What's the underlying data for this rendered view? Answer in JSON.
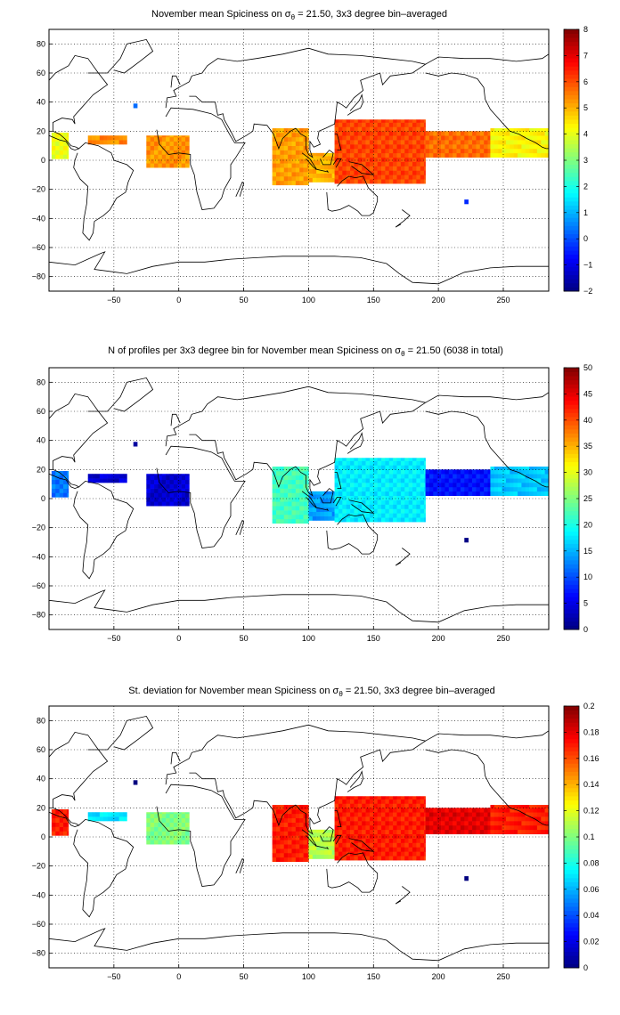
{
  "figure": {
    "background": "#ffffff"
  },
  "chart_data": [
    {
      "type": "heatmap",
      "title": "November mean Spiciness on σθ = 21.50, 3x3 degree bin–averaged",
      "title_main": "November mean Spiciness on σ",
      "title_sub": "θ",
      "title_rest": " = 21.50, 3x3 degree bin–averaged",
      "xlim": [
        -100,
        285
      ],
      "ylim": [
        -90,
        90
      ],
      "xticks": [
        -50,
        0,
        50,
        100,
        150,
        200,
        250
      ],
      "yticks": [
        -80,
        -60,
        -40,
        -20,
        0,
        20,
        40,
        60,
        80
      ],
      "grid": true,
      "colorbar": {
        "min": -2,
        "max": 8,
        "ticks": [
          -2,
          -1,
          0,
          1,
          2,
          3,
          4,
          5,
          6,
          7,
          8
        ]
      },
      "cell_size_deg": 3,
      "cells": [
        {
          "region": "Caribbean / eastern tropical Pacific",
          "lon": [
            -98,
            -85
          ],
          "lat": [
            1,
            19
          ],
          "value": 4.1
        },
        {
          "region": "tropical Atlantic band",
          "lon": [
            -70,
            -40
          ],
          "lat": [
            11,
            17
          ],
          "value": 5.4
        },
        {
          "region": "tropical eastern Atlantic",
          "lon": [
            -25,
            8
          ],
          "lat": [
            -5,
            17
          ],
          "value": 5.3
        },
        {
          "region": "isolated North Atlantic bin",
          "lon": [
            -35,
            -32
          ],
          "lat": [
            36,
            39
          ],
          "value": 0.4
        },
        {
          "region": "Bay of Bengal / eastern Indian Ocean",
          "lon": [
            72,
            100
          ],
          "lat": [
            -17,
            22
          ],
          "value": 5.2
        },
        {
          "region": "Indonesian seas",
          "lon": [
            100,
            120
          ],
          "lat": [
            -15,
            5
          ],
          "value": 5.0
        },
        {
          "region": "western Pacific warm pool",
          "lon": [
            120,
            190
          ],
          "lat": [
            -16,
            28
          ],
          "value": 6.1
        },
        {
          "region": "central tropical Pacific",
          "lon": [
            190,
            240
          ],
          "lat": [
            2,
            20
          ],
          "value": 5.7
        },
        {
          "region": "eastern tropical Pacific",
          "lon": [
            240,
            285
          ],
          "lat": [
            2,
            22
          ],
          "value": 4.3
        },
        {
          "region": "isolated South Pacific bin",
          "lon": [
            220,
            223
          ],
          "lat": [
            -30,
            -27
          ],
          "value": 0.0
        }
      ]
    },
    {
      "type": "heatmap",
      "title": "N of profiles per 3x3 degree bin for November mean Spiciness on σθ = 21.50 (6038 in total)",
      "title_main": "N of profiles per 3x3 degree bin for November mean Spiciness on σ",
      "title_sub": "θ",
      "title_rest": " = 21.50 (6038 in total)",
      "xlim": [
        -100,
        285
      ],
      "ylim": [
        -90,
        90
      ],
      "xticks": [
        -50,
        0,
        50,
        100,
        150,
        200,
        250
      ],
      "yticks": [
        -80,
        -60,
        -40,
        -20,
        0,
        20,
        40,
        60,
        80
      ],
      "grid": true,
      "colorbar": {
        "min": 0,
        "max": 50,
        "ticks": [
          0,
          5,
          10,
          15,
          20,
          25,
          30,
          35,
          40,
          45,
          50
        ]
      },
      "cell_size_deg": 3,
      "cells": [
        {
          "region": "Caribbean / eastern tropical Pacific",
          "lon": [
            -98,
            -85
          ],
          "lat": [
            1,
            19
          ],
          "value": 12
        },
        {
          "region": "tropical Atlantic band",
          "lon": [
            -70,
            -40
          ],
          "lat": [
            11,
            17
          ],
          "value": 4
        },
        {
          "region": "tropical eastern Atlantic",
          "lon": [
            -25,
            8
          ],
          "lat": [
            -5,
            17
          ],
          "value": 4
        },
        {
          "region": "isolated North Atlantic bin",
          "lon": [
            -35,
            -32
          ],
          "lat": [
            36,
            39
          ],
          "value": 2
        },
        {
          "region": "Bay of Bengal / eastern Indian Ocean",
          "lon": [
            72,
            100
          ],
          "lat": [
            -17,
            22
          ],
          "value": 22
        },
        {
          "region": "Indonesian seas",
          "lon": [
            100,
            120
          ],
          "lat": [
            -15,
            5
          ],
          "value": 14
        },
        {
          "region": "western Pacific warm pool",
          "lon": [
            120,
            190
          ],
          "lat": [
            -16,
            28
          ],
          "value": 18
        },
        {
          "region": "central tropical Pacific",
          "lon": [
            190,
            240
          ],
          "lat": [
            2,
            20
          ],
          "value": 7
        },
        {
          "region": "eastern tropical Pacific",
          "lon": [
            240,
            285
          ],
          "lat": [
            2,
            22
          ],
          "value": 16
        },
        {
          "region": "isolated South Pacific bin",
          "lon": [
            220,
            223
          ],
          "lat": [
            -30,
            -27
          ],
          "value": 2
        }
      ]
    },
    {
      "type": "heatmap",
      "title": "St. deviation for November mean Spiciness on σθ = 21.50, 3x3 degree bin–averaged",
      "title_main": "St. deviation for November mean Spiciness on σ",
      "title_sub": "θ",
      "title_rest": " = 21.50, 3x3 degree bin–averaged",
      "xlim": [
        -100,
        285
      ],
      "ylim": [
        -90,
        90
      ],
      "xticks": [
        -50,
        0,
        50,
        100,
        150,
        200,
        250
      ],
      "yticks": [
        -80,
        -60,
        -40,
        -20,
        0,
        20,
        40,
        60,
        80
      ],
      "grid": true,
      "colorbar": {
        "min": 0,
        "max": 0.2,
        "ticks": [
          0,
          0.02,
          0.04,
          0.06,
          0.08,
          0.1,
          0.12,
          0.14,
          0.16,
          0.18,
          0.2
        ]
      },
      "cell_size_deg": 3,
      "cells": [
        {
          "region": "Caribbean / eastern tropical Pacific",
          "lon": [
            -98,
            -85
          ],
          "lat": [
            1,
            19
          ],
          "value": 0.17
        },
        {
          "region": "tropical Atlantic band",
          "lon": [
            -70,
            -40
          ],
          "lat": [
            11,
            17
          ],
          "value": 0.07
        },
        {
          "region": "tropical eastern Atlantic",
          "lon": [
            -25,
            8
          ],
          "lat": [
            -5,
            17
          ],
          "value": 0.1
        },
        {
          "region": "isolated North Atlantic bin",
          "lon": [
            -35,
            -32
          ],
          "lat": [
            36,
            39
          ],
          "value": 0.0
        },
        {
          "region": "Bay of Bengal / eastern Indian Ocean",
          "lon": [
            72,
            100
          ],
          "lat": [
            -17,
            22
          ],
          "value": 0.17
        },
        {
          "region": "Indonesian seas",
          "lon": [
            100,
            120
          ],
          "lat": [
            -15,
            5
          ],
          "value": 0.11
        },
        {
          "region": "western Pacific warm pool",
          "lon": [
            120,
            190
          ],
          "lat": [
            -16,
            28
          ],
          "value": 0.17
        },
        {
          "region": "central tropical Pacific",
          "lon": [
            190,
            240
          ],
          "lat": [
            2,
            20
          ],
          "value": 0.18
        },
        {
          "region": "eastern tropical Pacific",
          "lon": [
            240,
            285
          ],
          "lat": [
            2,
            22
          ],
          "value": 0.17
        },
        {
          "region": "isolated South Pacific bin",
          "lon": [
            220,
            223
          ],
          "lat": [
            -30,
            -27
          ],
          "value": 0.0
        }
      ]
    }
  ]
}
